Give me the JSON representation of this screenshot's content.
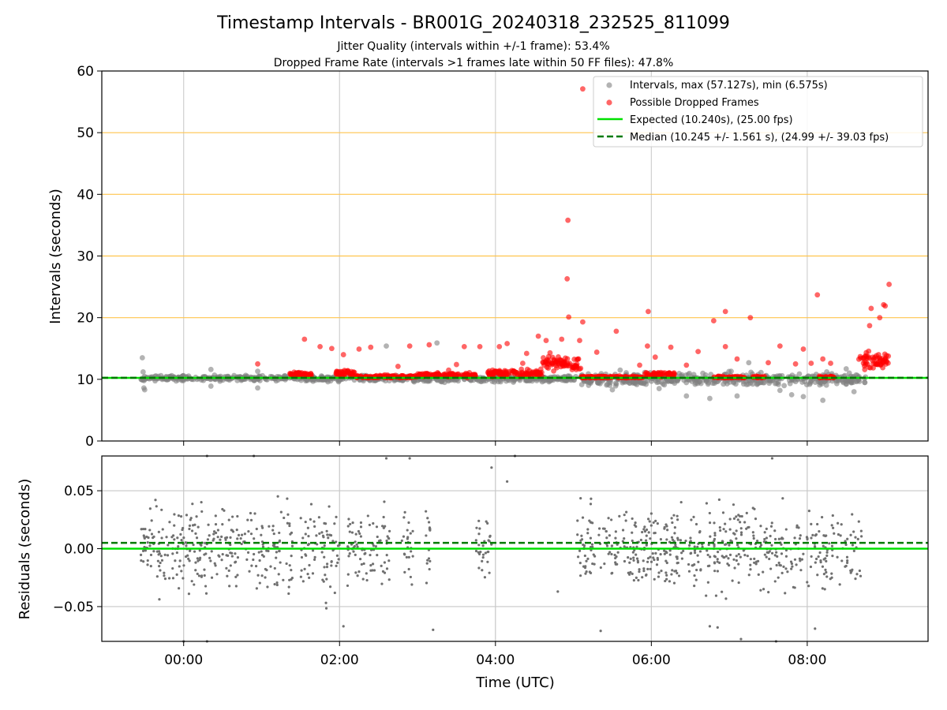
{
  "chart_data": [
    {
      "type": "scatter",
      "panel": "intervals",
      "title": "Timestamp Intervals - BR001G_20240318_232525_811099",
      "subtitle_lines": [
        "Jitter Quality (intervals within +/-1 frame): 53.4%",
        "Dropped Frame Rate (intervals >1 frames late within 50 FF files): 47.8%"
      ],
      "ylabel": "Intervals (seconds)",
      "ylim": [
        0,
        60
      ],
      "yticks": [
        0,
        10,
        20,
        30,
        40,
        50,
        60
      ],
      "xlim_hours": [
        -1.05,
        9.55
      ],
      "grid": {
        "y_lines": [
          20,
          30,
          40,
          50
        ],
        "y_color": "#ffc44d",
        "x_lines_hours": [
          0,
          2,
          4,
          6,
          8
        ],
        "x_color": "#d0d0d0"
      },
      "legend_position": "top-right",
      "series": [
        {
          "name": "Intervals, max (57.127s), min (6.575s)",
          "color": "#808080",
          "kind": "band",
          "segments": [
            {
              "x_start": -0.55,
              "x_end": 1.35,
              "center": 10.2,
              "spread": 0.6
            },
            {
              "x_start": 1.35,
              "x_end": 5.05,
              "center": 10.1,
              "spread": 0.7
            },
            {
              "x_start": 5.1,
              "x_end": 8.75,
              "center": 10.0,
              "spread": 1.5
            }
          ],
          "points": [
            [
              -0.53,
              13.5
            ],
            [
              -0.52,
              11.2
            ],
            [
              -0.51,
              8.6
            ],
            [
              -0.5,
              8.3
            ],
            [
              0.35,
              11.6
            ],
            [
              0.35,
              8.9
            ],
            [
              0.95,
              11.3
            ],
            [
              0.95,
              8.6
            ],
            [
              2.6,
              15.4
            ],
            [
              3.25,
              15.9
            ],
            [
              5.6,
              11.5
            ],
            [
              5.5,
              8.3
            ],
            [
              6.1,
              8.5
            ],
            [
              6.45,
              7.3
            ],
            [
              6.75,
              6.9
            ],
            [
              7.1,
              7.3
            ],
            [
              7.65,
              8.2
            ],
            [
              7.8,
              7.5
            ],
            [
              7.95,
              7.2
            ],
            [
              8.2,
              6.6
            ],
            [
              8.25,
              11.2
            ],
            [
              8.5,
              11.7
            ],
            [
              8.6,
              8.0
            ],
            [
              7.25,
              12.7
            ]
          ]
        },
        {
          "name": "Possible Dropped Frames",
          "color": "#ff0000",
          "kind": "band",
          "segments": [
            {
              "x_start": 1.35,
              "x_end": 1.65,
              "center": 10.8,
              "spread": 0.5
            },
            {
              "x_start": 1.95,
              "x_end": 2.2,
              "center": 11.0,
              "spread": 0.7
            },
            {
              "x_start": 2.2,
              "x_end": 3.0,
              "center": 10.4,
              "spread": 0.4
            },
            {
              "x_start": 3.0,
              "x_end": 3.75,
              "center": 10.7,
              "spread": 0.5
            },
            {
              "x_start": 3.9,
              "x_end": 4.6,
              "center": 11.0,
              "spread": 0.8
            },
            {
              "x_start": 4.6,
              "x_end": 5.1,
              "center": 12.5,
              "spread": 1.6
            },
            {
              "x_start": 5.1,
              "x_end": 5.9,
              "center": 10.2,
              "spread": 0.3
            },
            {
              "x_start": 5.9,
              "x_end": 6.3,
              "center": 10.8,
              "spread": 0.6
            },
            {
              "x_start": 6.8,
              "x_end": 7.2,
              "center": 10.3,
              "spread": 0.3
            },
            {
              "x_start": 7.3,
              "x_end": 7.45,
              "center": 10.3,
              "spread": 0.3
            },
            {
              "x_start": 8.15,
              "x_end": 8.35,
              "center": 10.3,
              "spread": 0.3
            },
            {
              "x_start": 8.65,
              "x_end": 9.05,
              "center": 13.0,
              "spread": 1.8
            }
          ],
          "points": [
            [
              5.12,
              57.1
            ],
            [
              4.93,
              35.8
            ],
            [
              4.92,
              26.3
            ],
            [
              4.94,
              20.1
            ],
            [
              5.12,
              19.3
            ],
            [
              5.96,
              21.0
            ],
            [
              6.95,
              21.0
            ],
            [
              7.27,
              20.0
            ],
            [
              6.8,
              19.5
            ],
            [
              8.13,
              23.7
            ],
            [
              9.05,
              25.4
            ],
            [
              8.98,
              22.1
            ],
            [
              9.0,
              21.9
            ],
            [
              8.82,
              21.5
            ],
            [
              8.93,
              20.0
            ],
            [
              8.8,
              18.7
            ],
            [
              5.55,
              17.8
            ],
            [
              1.55,
              16.5
            ],
            [
              4.55,
              17.0
            ],
            [
              4.85,
              16.5
            ],
            [
              5.08,
              16.3
            ],
            [
              4.15,
              15.8
            ],
            [
              4.05,
              15.3
            ],
            [
              3.8,
              15.3
            ],
            [
              3.6,
              15.3
            ],
            [
              3.15,
              15.6
            ],
            [
              2.9,
              15.4
            ],
            [
              2.4,
              15.2
            ],
            [
              2.25,
              14.9
            ],
            [
              1.9,
              15.0
            ],
            [
              1.75,
              15.3
            ],
            [
              2.05,
              14.0
            ],
            [
              0.95,
              12.5
            ],
            [
              5.85,
              12.3
            ],
            [
              6.25,
              15.2
            ],
            [
              6.05,
              13.6
            ],
            [
              5.95,
              15.4
            ],
            [
              6.95,
              15.3
            ],
            [
              7.1,
              13.3
            ],
            [
              7.65,
              15.4
            ],
            [
              7.95,
              14.9
            ],
            [
              7.85,
              12.5
            ],
            [
              8.05,
              12.6
            ],
            [
              8.3,
              12.6
            ],
            [
              8.2,
              13.3
            ],
            [
              6.6,
              14.5
            ],
            [
              5.3,
              14.4
            ],
            [
              3.5,
              12.4
            ],
            [
              3.4,
              11.5
            ],
            [
              2.75,
              12.1
            ],
            [
              4.35,
              12.6
            ],
            [
              4.4,
              14.2
            ],
            [
              4.7,
              14.3
            ],
            [
              4.65,
              16.3
            ],
            [
              6.45,
              12.3
            ],
            [
              7.5,
              12.7
            ]
          ]
        },
        {
          "name": "Expected (10.240s), (25.00 fps)",
          "color": "#00e000",
          "kind": "hline",
          "y": 10.24,
          "style": "solid"
        },
        {
          "name": "Median (10.245 +/- 1.561 s), (24.99 +/- 39.03 fps)",
          "color": "#007a00",
          "kind": "hline",
          "y": 10.245,
          "style": "dashed"
        }
      ]
    },
    {
      "type": "scatter",
      "panel": "residuals",
      "xlabel": "Time (UTC)",
      "ylabel": "Residuals (seconds)",
      "ylim": [
        -0.08,
        0.08
      ],
      "yticks": [
        0.05,
        0.0,
        -0.05
      ],
      "ytick_labels": [
        "0.05",
        "0.00",
        "−0.05"
      ],
      "xlim_hours": [
        -1.05,
        9.55
      ],
      "xticks_hours": [
        0,
        2,
        4,
        6,
        8
      ],
      "xtick_labels": [
        "00:00",
        "02:00",
        "04:00",
        "06:00",
        "08:00"
      ],
      "grid": {
        "y_lines": [
          0.05,
          0.0,
          -0.05
        ],
        "x_lines_hours": [
          0,
          2,
          4,
          6,
          8
        ],
        "color": "#c8c8c8"
      },
      "series": [
        {
          "name": "Residuals",
          "color": "#707070",
          "kind": "band",
          "segments": [
            {
              "x_start": -0.55,
              "x_end": 1.4,
              "center": 0.0,
              "spread": 0.055
            },
            {
              "x_start": 1.5,
              "x_end": 2.0,
              "center": 0.0,
              "spread": 0.06
            },
            {
              "x_start": 2.1,
              "x_end": 2.65,
              "center": 0.0,
              "spread": 0.05
            },
            {
              "x_start": 2.8,
              "x_end": 2.95,
              "center": 0.0,
              "spread": 0.05
            },
            {
              "x_start": 3.1,
              "x_end": 3.2,
              "center": 0.0,
              "spread": 0.05
            },
            {
              "x_start": 3.75,
              "x_end": 3.95,
              "center": 0.0,
              "spread": 0.045
            },
            {
              "x_start": 5.05,
              "x_end": 8.7,
              "center": 0.0,
              "spread": 0.05
            }
          ],
          "points": [
            [
              0.3,
              0.08
            ],
            [
              0.9,
              0.08
            ],
            [
              2.6,
              0.078
            ],
            [
              2.9,
              0.078
            ],
            [
              4.25,
              0.08
            ],
            [
              7.55,
              0.078
            ],
            [
              4.8,
              -0.037
            ],
            [
              5.35,
              -0.071
            ],
            [
              6.75,
              -0.067
            ],
            [
              6.85,
              -0.068
            ],
            [
              8.1,
              -0.069
            ],
            [
              2.05,
              -0.067
            ],
            [
              3.2,
              -0.07
            ],
            [
              0.3,
              -0.08
            ],
            [
              0.0,
              -0.08
            ],
            [
              7.15,
              -0.078
            ],
            [
              7.6,
              -0.08
            ],
            [
              3.95,
              0.07
            ],
            [
              4.15,
              0.058
            ]
          ]
        },
        {
          "name": "Expected",
          "color": "#00e000",
          "kind": "hline",
          "y": 0.0,
          "style": "solid"
        },
        {
          "name": "Median",
          "color": "#007a00",
          "kind": "hline",
          "y": 0.005,
          "style": "dashed"
        }
      ]
    }
  ]
}
